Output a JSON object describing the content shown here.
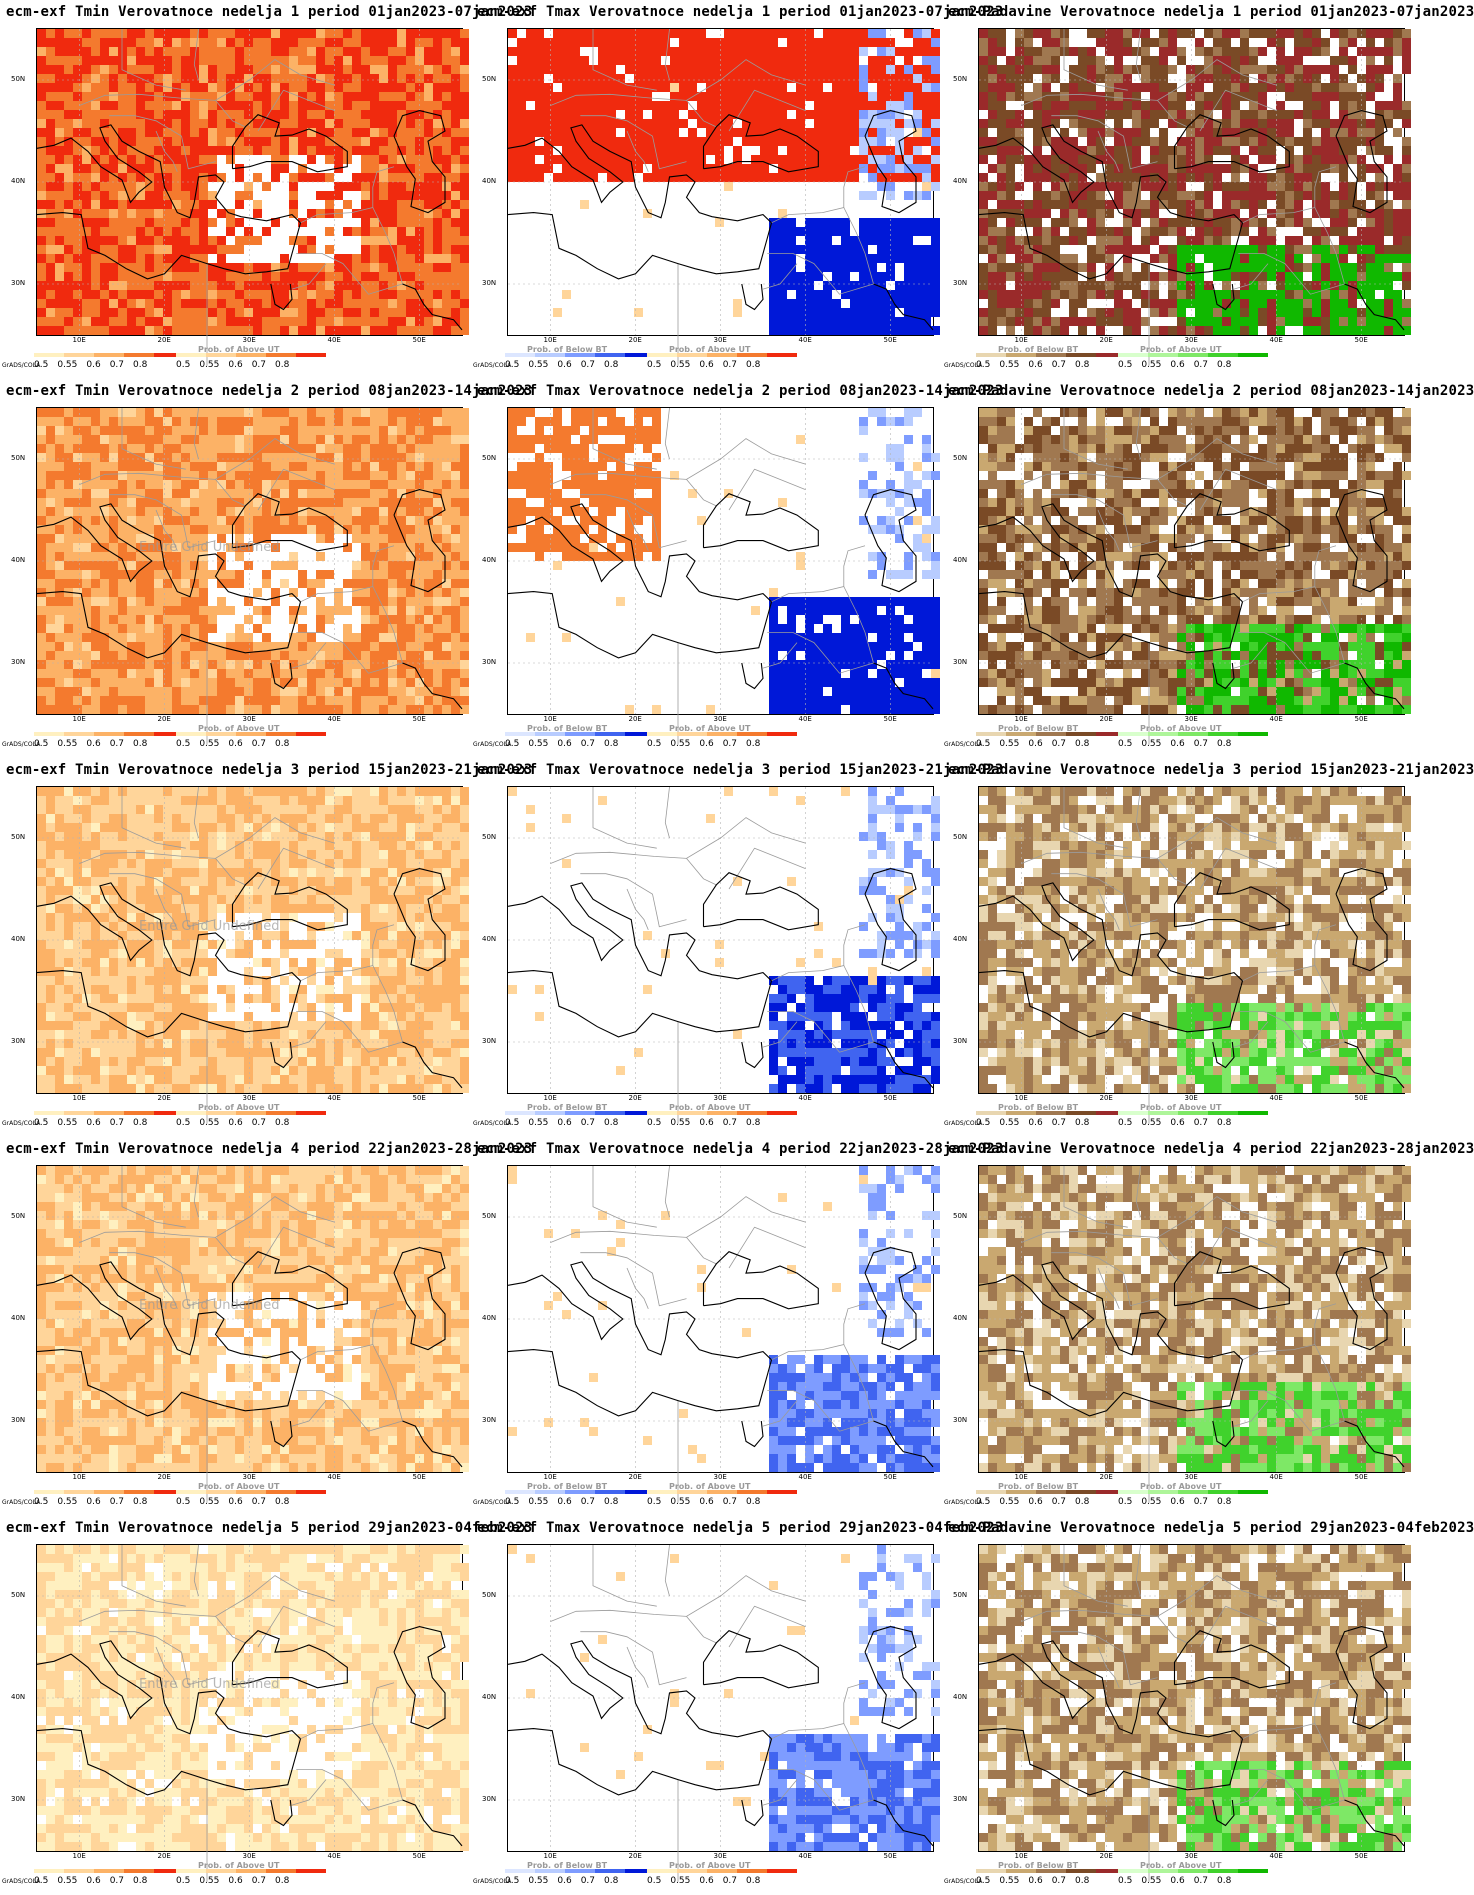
{
  "x_ticks": [
    "10E",
    "20E",
    "30E",
    "40E",
    "50E"
  ],
  "y_ticks": [
    "50N",
    "40N",
    "30N"
  ],
  "credit": "GrADS/COLA",
  "legend_ticks": [
    "0.5",
    "0.55",
    "0.6",
    "0.7",
    "0.8"
  ],
  "watermark": "Entire Grid Undefined",
  "legends": {
    "below": {
      "title": "Prob. of Below BT"
    },
    "above": {
      "title": "Prob. of Above UT"
    }
  },
  "palettes": {
    "tmin_above": [
      "#fff0c0",
      "#ffd59a",
      "#fcb266",
      "#f47a2e",
      "#f02a0e"
    ],
    "tmax_below": [
      "#dce6ff",
      "#b8ccff",
      "#7e9cff",
      "#4064f0",
      "#0018d8"
    ],
    "precip_dry": [
      "#e8d6b0",
      "#c9a870",
      "#a07850",
      "#7a4a26",
      "#9a2a2a"
    ],
    "precip_wet": [
      "#d8ffcc",
      "#aef59a",
      "#7ee866",
      "#40d22c",
      "#10b800"
    ]
  },
  "panels": [
    {
      "title": "ecm-exf Tmin Verovatnoce nedelja 1 period 01jan2023-07jan2023",
      "variable": "Tmin",
      "week": 1,
      "overall_level": 5,
      "watermark": false
    },
    {
      "title": "ecm-exf Tmax Verovatnoce nedelja 1 period 01jan2023-07jan2023",
      "variable": "Tmax",
      "week": 1,
      "overall_level": 5,
      "watermark": false
    },
    {
      "title": "ecm-Padavine Verovatnoce nedelja 1 period 01jan2023-07jan2023",
      "variable": "Precip",
      "week": 1,
      "overall_level": 5,
      "watermark": false
    },
    {
      "title": "ecm-exf Tmin Verovatnoce nedelja 2 period 08jan2023-14jan2023",
      "variable": "Tmin",
      "week": 2,
      "overall_level": 4,
      "watermark": true
    },
    {
      "title": "ecm-exf Tmax Verovatnoce nedelja 2 period 08jan2023-14jan2023",
      "variable": "Tmax",
      "week": 2,
      "overall_level": 3,
      "watermark": false
    },
    {
      "title": "ecm-Padavine Verovatnoce nedelja 2 period 08jan2023-14jan2023",
      "variable": "Precip",
      "week": 2,
      "overall_level": 4,
      "watermark": false
    },
    {
      "title": "ecm-exf Tmin Verovatnoce nedelja 3 period 15jan2023-21jan2023",
      "variable": "Tmin",
      "week": 3,
      "overall_level": 3,
      "watermark": true
    },
    {
      "title": "ecm-exf Tmax Verovatnoce nedelja 3 period 15jan2023-21jan2023",
      "variable": "Tmax",
      "week": 3,
      "overall_level": 2,
      "watermark": false
    },
    {
      "title": "ecm-Padavine Verovatnoce nedelja 3 period 15jan2023-21jan2023",
      "variable": "Precip",
      "week": 3,
      "overall_level": 3,
      "watermark": false
    },
    {
      "title": "ecm-exf Tmin Verovatnoce nedelja 4 period 22jan2023-28jan2023",
      "variable": "Tmin",
      "week": 4,
      "overall_level": 3,
      "watermark": true
    },
    {
      "title": "ecm-exf Tmax Verovatnoce nedelja 4 period 22jan2023-28jan2023",
      "variable": "Tmax",
      "week": 4,
      "overall_level": 1,
      "watermark": false
    },
    {
      "title": "ecm-Padavine Verovatnoce nedelja 4 period 22jan2023-28jan2023",
      "variable": "Precip",
      "week": 4,
      "overall_level": 3,
      "watermark": false
    },
    {
      "title": "ecm-exf Tmin Verovatnoce nedelja 5 period 29jan2023-04feb2023",
      "variable": "Tmin",
      "week": 5,
      "overall_level": 2,
      "watermark": true
    },
    {
      "title": "ecm-exf Tmax Verovatnoce nedelja 5 period 29jan2023-04feb2023",
      "variable": "Tmax",
      "week": 5,
      "overall_level": 1,
      "watermark": false
    },
    {
      "title": "ecm-Padavine Verovatnoce nedelja 5 period 29jan2023-04feb2023",
      "variable": "Precip",
      "week": 5,
      "overall_level": 3,
      "watermark": false
    }
  ]
}
